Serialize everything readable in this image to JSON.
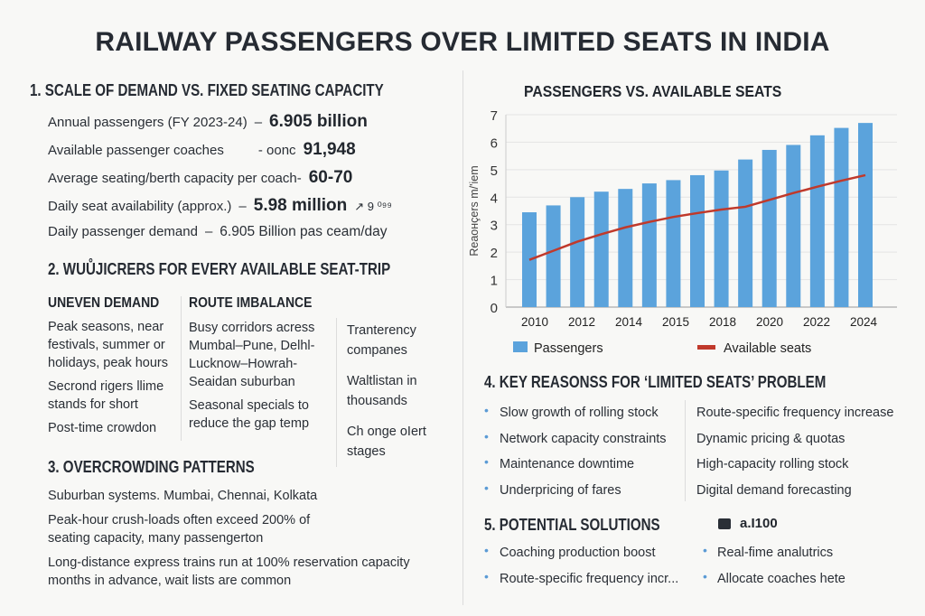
{
  "title": "RAILWAY PASSENGERS OVER LIMITED SEATS IN INDIA",
  "section1": {
    "heading": "1. SCALE OF DEMAND VS. FIXED SEATING CAPACITY",
    "rows": [
      {
        "label": "Annual passengers (FY 2023-24)",
        "sep": "–",
        "value": "6.905 billion",
        "extra": ""
      },
      {
        "label": "Available passenger coaches",
        "sep": "- oonc",
        "value": "91,948",
        "extra": ""
      },
      {
        "label": "Average seating/berth capacity per coach-",
        "sep": "",
        "value": "60-70",
        "extra": ""
      },
      {
        "label": "Daily seat availability (approx.)",
        "sep": "–",
        "value": "5.98 million",
        "extra": "↗ 9 ⁰⁹⁹"
      },
      {
        "label": "Daily passenger demand",
        "sep": "–",
        "value": "6.905 Billion pas ceam/day",
        "extra": ""
      }
    ]
  },
  "section2": {
    "heading": "2. WUŮJICRERS FOR EVERY AVAILABLE SEAT-TRIP",
    "columns": [
      {
        "header": "UNEVEN DEMAND",
        "items": [
          "Peak seasons, near festivals, summer or holidays, peak hours",
          "Secrond rigers llime stands for short",
          "Post-time crowdon"
        ]
      },
      {
        "header": "ROUTE IMBALANCE",
        "items": [
          "Busy corridors acress Mumbal–Pune, Delhl-Lucknow–Howrah-Seaidan suburban",
          "Seasonal specials to reduce the gap temp"
        ]
      },
      {
        "header": "",
        "items": [
          "Tranterency companes",
          "Waltlistan in thousands",
          "Ch onge oIert stages"
        ]
      }
    ]
  },
  "section3": {
    "heading": "3. OVERCROWDING PATTERNS",
    "paragraphs": [
      "Suburban systems. Mumbai, Chennai, Kolkata",
      "Peak-hour crush-loads often exceed 200% of seating capacity, many passengerton",
      "Long-distance express trains run at 100% reservation capacity months in advance, wait lists are common"
    ]
  },
  "chart_data": {
    "type": "bar",
    "title": "PASSENGERS VS. AVAILABLE SEATS",
    "ylabel": "Reaoнçers m/'iem",
    "xlabel": "",
    "ylim": [
      0,
      7
    ],
    "yticks": [
      "0",
      "1",
      "2",
      "3",
      "4",
      "5",
      "6",
      "7"
    ],
    "xtick_labels": [
      "2010",
      "2012",
      "2014",
      "2015",
      "2018",
      "2020",
      "2022",
      "2024"
    ],
    "grid": true,
    "legend_position": "bottom",
    "series": [
      {
        "name": "Passengers",
        "type": "bar",
        "color": "#5ba3dc",
        "values": [
          3.45,
          3.7,
          4.0,
          4.2,
          4.3,
          4.5,
          4.62,
          4.8,
          4.97,
          5.37,
          5.72,
          5.9,
          6.25,
          6.52,
          6.7
        ]
      },
      {
        "name": "Available seats",
        "type": "line",
        "color": "#c0392b",
        "values": [
          1.72,
          2.05,
          2.38,
          2.65,
          2.9,
          3.1,
          3.28,
          3.42,
          3.55,
          3.65,
          3.9,
          4.15,
          4.38,
          4.6,
          4.8
        ]
      }
    ]
  },
  "section4": {
    "heading": "4. KEY REASONSS FOR ‘LIMITED SEATS’ PROBLEM",
    "left": [
      "Slow growth of rolling stock",
      "Network capacity constraints",
      "Maintenance downtime",
      "Underpricing of fares"
    ],
    "right": [
      "Route-specific frequency increase",
      "Dynamic pricing & quotas",
      "High-capacity rolling stock",
      "Digital demand forecasting"
    ]
  },
  "section5": {
    "heading": "5. POTENTIAL SOLUTIONS",
    "icon_text": "a.I100",
    "left": [
      "Coaching production boost",
      "Route-specific frequency incr..."
    ],
    "right": [
      "Real-fime analutrics",
      "Allocate coaches hete"
    ]
  }
}
